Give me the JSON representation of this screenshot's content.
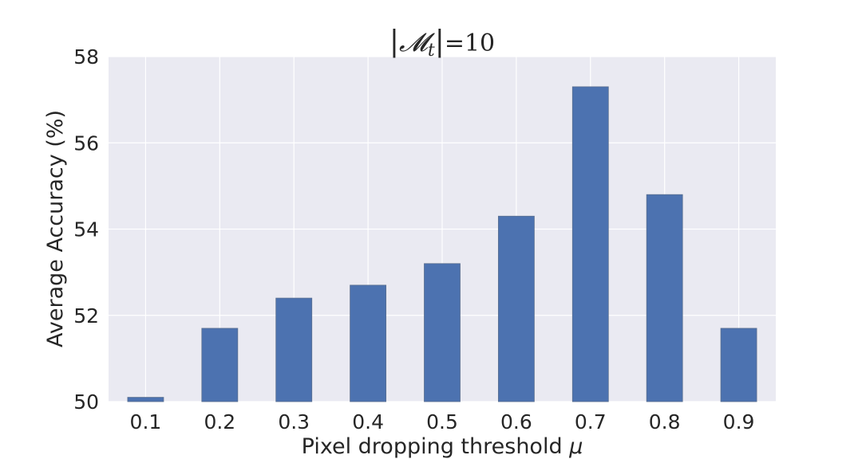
{
  "chart_data": {
    "type": "bar",
    "title_parts": {
      "bar_left": "|",
      "symbol": "𝓜",
      "subscript": "t",
      "bar_right": "|",
      "suffix": "=10"
    },
    "xlabel": "Pixel dropping threshold",
    "xlabel_symbol": "μ",
    "ylabel": "Average Accuracy (%)",
    "categories": [
      "0.1",
      "0.2",
      "0.3",
      "0.4",
      "0.5",
      "0.6",
      "0.7",
      "0.8",
      "0.9"
    ],
    "values": [
      50.1,
      51.7,
      52.4,
      52.7,
      53.2,
      54.3,
      57.3,
      54.8,
      51.7
    ],
    "ylim": [
      50,
      58
    ],
    "yticks": [
      50,
      52,
      54,
      56,
      58
    ],
    "grid": true,
    "colors": {
      "bar": "#4c72b0",
      "background": "#eaeaf2",
      "grid": "#ffffff"
    }
  }
}
